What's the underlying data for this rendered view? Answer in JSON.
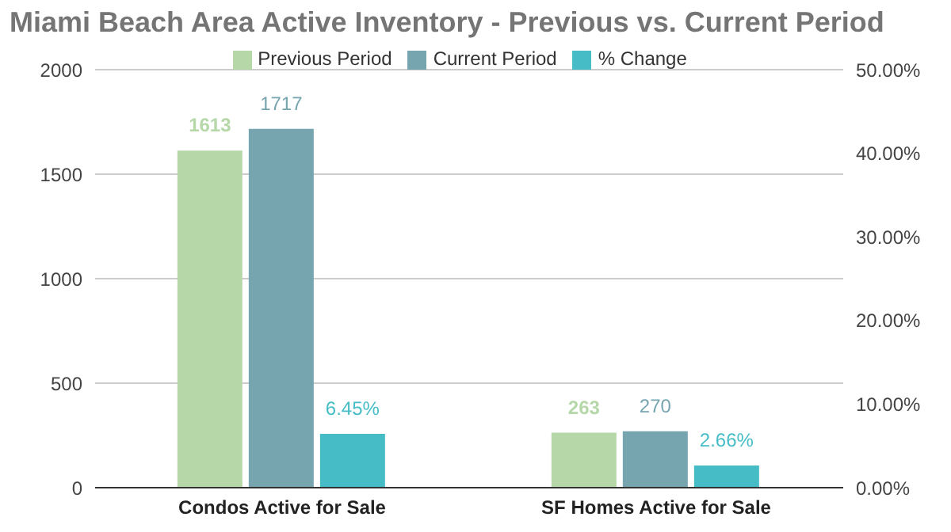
{
  "chart_data": {
    "type": "bar",
    "title": "Miami Beach Area Active Inventory - Previous vs. Current Period",
    "categories": [
      "Condos Active for Sale",
      "SF Homes Active for Sale"
    ],
    "series": [
      {
        "name": "Previous Period",
        "color": "#b6d7a8",
        "values": [
          1613,
          263
        ],
        "value_labels": [
          "1613",
          "263"
        ]
      },
      {
        "name": "Current Period",
        "color": "#76a5af",
        "values": [
          1717,
          270
        ],
        "value_labels": [
          "1717",
          "270"
        ]
      },
      {
        "name": "% Change",
        "color": "#46bdc6",
        "values": [
          6.45,
          2.66
        ],
        "axis": "y2",
        "value_labels": [
          "6.45%",
          "2.66%"
        ]
      }
    ],
    "ylim": [
      0,
      2000
    ],
    "yticks": [
      0,
      500,
      1000,
      1500,
      2000
    ],
    "y2lim": [
      0,
      50
    ],
    "y2ticks": [
      {
        "value": 0,
        "label": "0.00%"
      },
      {
        "value": 10,
        "label": "10.00%"
      },
      {
        "value": 20,
        "label": "20.00%"
      },
      {
        "value": 30,
        "label": "30.00%"
      },
      {
        "value": 40,
        "label": "40.00%"
      },
      {
        "value": 50,
        "label": "50.00%"
      }
    ],
    "grid": "y",
    "legend": "top"
  }
}
